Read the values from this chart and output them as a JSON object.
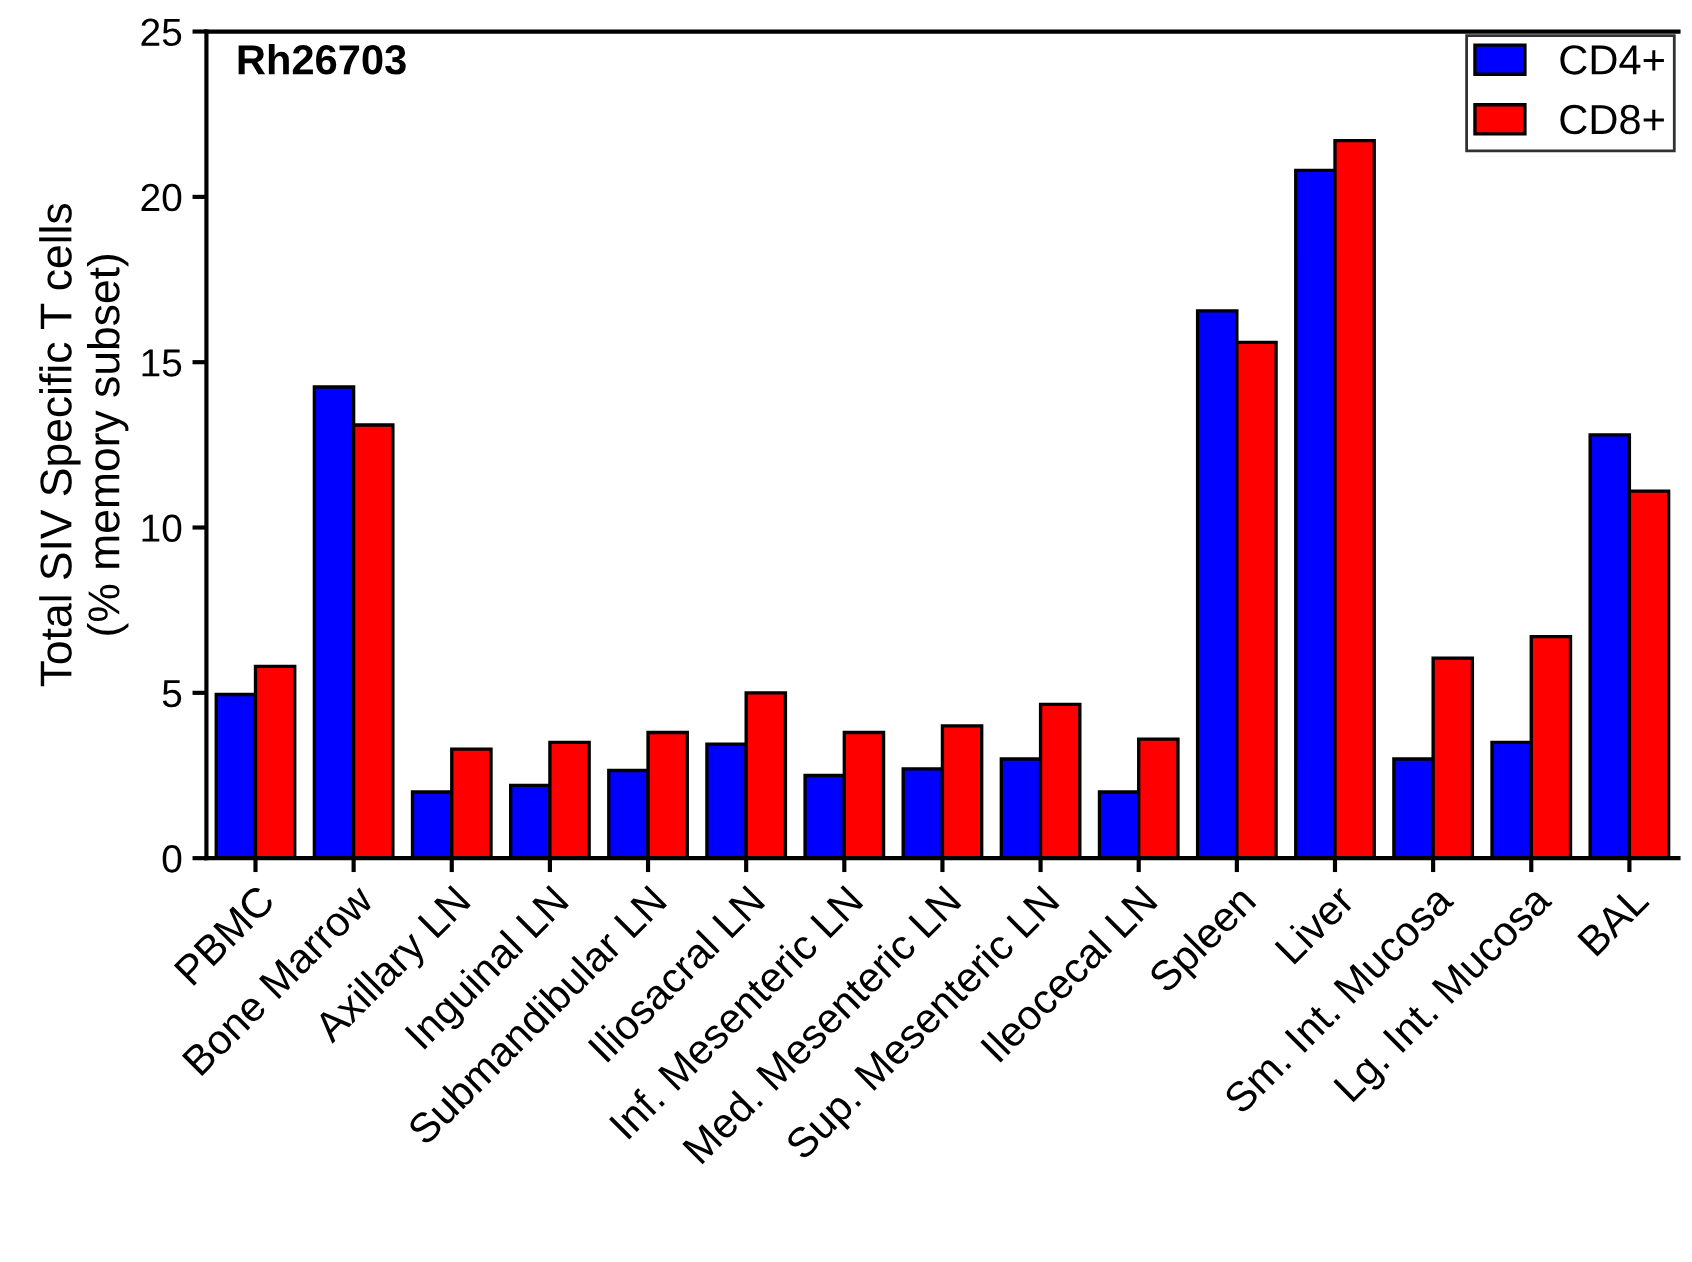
{
  "chart_data": {
    "type": "bar",
    "ylabel": "Total SIV Specific T cells\n(% memory subset)",
    "annotations": [
      "Rh26703"
    ],
    "categories": [
      "PBMC",
      "Bone Marrow",
      "Axillary LN",
      "Inguinal LN",
      "Submandibular LN",
      "Iliosacral LN",
      "Inf. Mesenteric LN",
      "Med. Mesenteric LN",
      "Sup. Mesenteric LN",
      "Ileocecal LN",
      "Spleen",
      "Liver",
      "Sm. Int. Mucosa",
      "Lg. Int. Mucosa",
      "BAL"
    ],
    "series": [
      {
        "name": "CD4+",
        "color": "#0000ff",
        "values": [
          4.95,
          14.25,
          2.0,
          2.2,
          2.65,
          3.45,
          2.5,
          2.7,
          3.0,
          2.0,
          16.55,
          20.8,
          3.0,
          3.5,
          12.8
        ]
      },
      {
        "name": "CD8+",
        "color": "#ff0000",
        "values": [
          5.8,
          13.1,
          3.3,
          3.5,
          3.8,
          5.0,
          3.8,
          4.0,
          4.65,
          3.6,
          15.6,
          21.7,
          6.05,
          6.7,
          11.1
        ]
      }
    ],
    "ylim": [
      0,
      25
    ],
    "yticks": [
      0,
      5,
      10,
      15,
      20,
      25
    ],
    "grid": false,
    "legend": "top right"
  }
}
